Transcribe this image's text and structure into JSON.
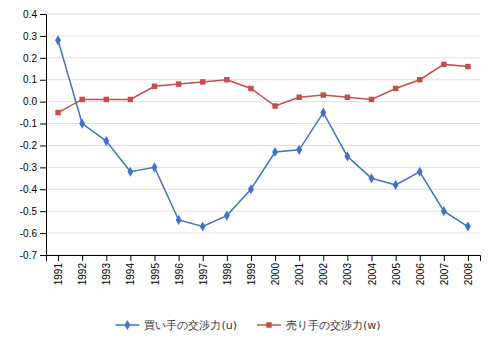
{
  "chart_data": {
    "type": "line",
    "x": [
      1991,
      1992,
      1993,
      1994,
      1995,
      1996,
      1997,
      1998,
      1999,
      2000,
      2001,
      2002,
      2003,
      2004,
      2005,
      2006,
      2007,
      2008
    ],
    "series": [
      {
        "name": "買い手の交渉力(u)",
        "color": "#4472C4",
        "marker": "diamond",
        "values": [
          0.28,
          -0.1,
          -0.18,
          -0.32,
          -0.3,
          -0.54,
          -0.57,
          -0.52,
          -0.4,
          -0.23,
          -0.22,
          -0.05,
          -0.25,
          -0.35,
          -0.38,
          -0.32,
          -0.5,
          -0.57
        ]
      },
      {
        "name": "売り手の交渉力(w)",
        "color": "#C0504D",
        "marker": "square",
        "values": [
          -0.05,
          0.01,
          0.01,
          0.01,
          0.07,
          0.08,
          0.09,
          0.1,
          0.06,
          -0.02,
          0.02,
          0.03,
          0.02,
          0.01,
          0.06,
          0.1,
          0.17,
          0.16
        ]
      }
    ],
    "xlim": [
      1990.5,
      2008.5
    ],
    "xticks": [
      1991,
      1992,
      1993,
      1994,
      1995,
      1996,
      1997,
      1998,
      1999,
      2000,
      2001,
      2002,
      2003,
      2004,
      2005,
      2006,
      2007,
      2008
    ],
    "ylim": [
      -0.7,
      0.4
    ],
    "yticks": [
      -0.7,
      -0.6,
      -0.5,
      -0.4,
      -0.3,
      -0.2,
      -0.1,
      {
        "value": 0.0,
        "label": "0.0"
      },
      0.1,
      0.2,
      0.3,
      0.4
    ],
    "grid": true,
    "legend": "bottom"
  }
}
